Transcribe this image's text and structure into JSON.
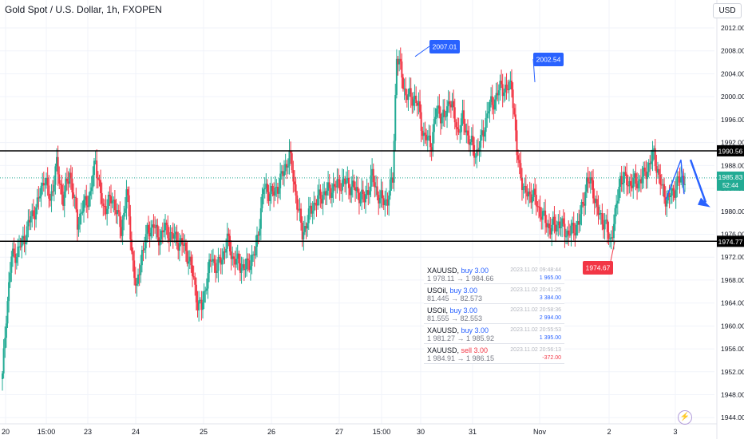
{
  "header": {
    "symbol_title": "Gold Spot / U.S. Dollar, 1h, FXOPEN",
    "currency_button": "USD"
  },
  "colors": {
    "up": "#22ab94",
    "down": "#f23645",
    "level_line": "#000000",
    "arrow": "#2962ff",
    "current_price": "#22ab94"
  },
  "chart_data": {
    "type": "candlestick",
    "y_ticks": [
      1944,
      1948,
      1952,
      1956,
      1960,
      1964,
      1968,
      1972,
      1976,
      1980,
      1984,
      1988,
      1992,
      1996,
      2000,
      2004,
      2008,
      2012
    ],
    "y_tick_labels": [
      "1944.00",
      "1948.00",
      "1952.00",
      "1956.00",
      "1960.00",
      "1964.00",
      "1968.00",
      "1972.00",
      "1976.00",
      "1980.00",
      "1984.00",
      "1988.00",
      "1992.00",
      "1996.00",
      "2000.00",
      "2004.00",
      "2008.00",
      "2012.00"
    ],
    "x_labels": [
      "20",
      "15:00",
      "23",
      "24",
      "25",
      "26",
      "27",
      "15:00",
      "30",
      "31",
      "Nov",
      "2",
      "3"
    ],
    "levels": [
      {
        "price": 1990.56,
        "label": "1990.56"
      },
      {
        "price": 1974.77,
        "label": "1974.77"
      }
    ],
    "current_price": {
      "price": 1985.83,
      "label": "1985.83",
      "countdown": "52:44"
    },
    "annotations": [
      {
        "label": "2007.01",
        "price": 2007.01,
        "color": "#2962ff"
      },
      {
        "label": "2002.54",
        "price": 2002.54,
        "color": "#2962ff"
      },
      {
        "label": "1974.67",
        "price": 1974.67,
        "color": "#f23645"
      }
    ],
    "waypoints": [
      [
        0,
        1951
      ],
      [
        3,
        1962
      ],
      [
        7,
        1972
      ],
      [
        12,
        1973
      ],
      [
        18,
        1976
      ],
      [
        22,
        1979
      ],
      [
        27,
        1981
      ],
      [
        32,
        1986
      ],
      [
        37,
        1982
      ],
      [
        42,
        1988
      ],
      [
        47,
        1982
      ],
      [
        52,
        1987
      ],
      [
        58,
        1978
      ],
      [
        63,
        1981
      ],
      [
        68,
        1983
      ],
      [
        72,
        1989
      ],
      [
        78,
        1980
      ],
      [
        82,
        1982
      ],
      [
        88,
        1981
      ],
      [
        92,
        1976
      ],
      [
        96,
        1984
      ],
      [
        100,
        1973
      ],
      [
        104,
        1966
      ],
      [
        108,
        1973
      ],
      [
        112,
        1976
      ],
      [
        117,
        1978
      ],
      [
        120,
        1975
      ],
      [
        125,
        1977
      ],
      [
        130,
        1976
      ],
      [
        135,
        1975
      ],
      [
        140,
        1974
      ],
      [
        144,
        1972
      ],
      [
        148,
        1968
      ],
      [
        151,
        1964
      ],
      [
        154,
        1963
      ],
      [
        158,
        1968
      ],
      [
        162,
        1972
      ],
      [
        166,
        1970
      ],
      [
        170,
        1972
      ],
      [
        174,
        1975
      ],
      [
        178,
        1972
      ],
      [
        182,
        1971
      ],
      [
        188,
        1970
      ],
      [
        196,
        1973
      ],
      [
        202,
        1984
      ],
      [
        210,
        1983
      ],
      [
        218,
        1987
      ],
      [
        222,
        1990
      ],
      [
        227,
        1983
      ],
      [
        232,
        1976
      ],
      [
        240,
        1981
      ],
      [
        248,
        1983
      ],
      [
        255,
        1984
      ],
      [
        262,
        1985
      ],
      [
        266,
        1985
      ],
      [
        272,
        1984
      ],
      [
        280,
        1982
      ],
      [
        286,
        1986
      ],
      [
        292,
        1982
      ],
      [
        298,
        1982
      ],
      [
        302,
        1986
      ],
      [
        305,
        2007
      ],
      [
        309,
        2004
      ],
      [
        312,
        2000
      ],
      [
        318,
        2000
      ],
      [
        322,
        1998
      ],
      [
        326,
        1993
      ],
      [
        332,
        1992
      ],
      [
        336,
        1998
      ],
      [
        342,
        1996
      ],
      [
        346,
        2000
      ],
      [
        352,
        1994
      ],
      [
        356,
        1996
      ],
      [
        362,
        1992
      ],
      [
        366,
        1990
      ],
      [
        370,
        1992
      ],
      [
        376,
        1998
      ],
      [
        382,
        2000
      ],
      [
        386,
        2002
      ],
      [
        390,
        2001
      ],
      [
        394,
        2002.5
      ],
      [
        398,
        1990
      ],
      [
        404,
        1983
      ],
      [
        410,
        1983
      ],
      [
        418,
        1979
      ],
      [
        424,
        1977
      ],
      [
        430,
        1978
      ],
      [
        438,
        1976
      ],
      [
        446,
        1978
      ],
      [
        452,
        1985
      ],
      [
        456,
        1985
      ],
      [
        460,
        1980
      ],
      [
        466,
        1978
      ],
      [
        470,
        1974.7
      ],
      [
        474,
        1979
      ],
      [
        478,
        1986
      ],
      [
        484,
        1985
      ],
      [
        490,
        1985
      ],
      [
        496,
        1986
      ],
      [
        504,
        1990
      ],
      [
        510,
        1984
      ],
      [
        514,
        1982
      ],
      [
        518,
        1983
      ],
      [
        522,
        1985
      ],
      [
        528,
        1986
      ]
    ],
    "hand_arrow": {
      "zigzag": [
        [
          1982,
          0
        ],
        [
          1989,
          6
        ],
        [
          1983,
          8
        ]
      ],
      "target_price": 1981
    }
  },
  "trades": [
    {
      "symbol": "XAUUSD",
      "side": "buy 3.00",
      "prices": "1 978.11 → 1 984.66",
      "time": "2023.11.02 09:48:44",
      "pnl": "1 965.00",
      "negative": false
    },
    {
      "symbol": "USOil",
      "side": "buy 3.00",
      "prices": "81.445 → 82.573",
      "time": "2023.11.02 20:41:25",
      "pnl": "3 384.00",
      "negative": false
    },
    {
      "symbol": "USOil",
      "side": "buy 3.00",
      "prices": "81.555 → 82.553",
      "time": "2023.11.02 20:58:36",
      "pnl": "2 994.00",
      "negative": false
    },
    {
      "symbol": "XAUUSD",
      "side": "buy 3.00",
      "prices": "1 981.27 → 1 985.92",
      "time": "2023.11.02 20:55:53",
      "pnl": "1 395.00",
      "negative": false
    },
    {
      "symbol": "XAUUSD",
      "side": "sell 3.00",
      "prices": "1 984.91 → 1 986.15",
      "time": "2023.11.02 20:56:13",
      "pnl": "-372.00",
      "negative": true
    }
  ]
}
